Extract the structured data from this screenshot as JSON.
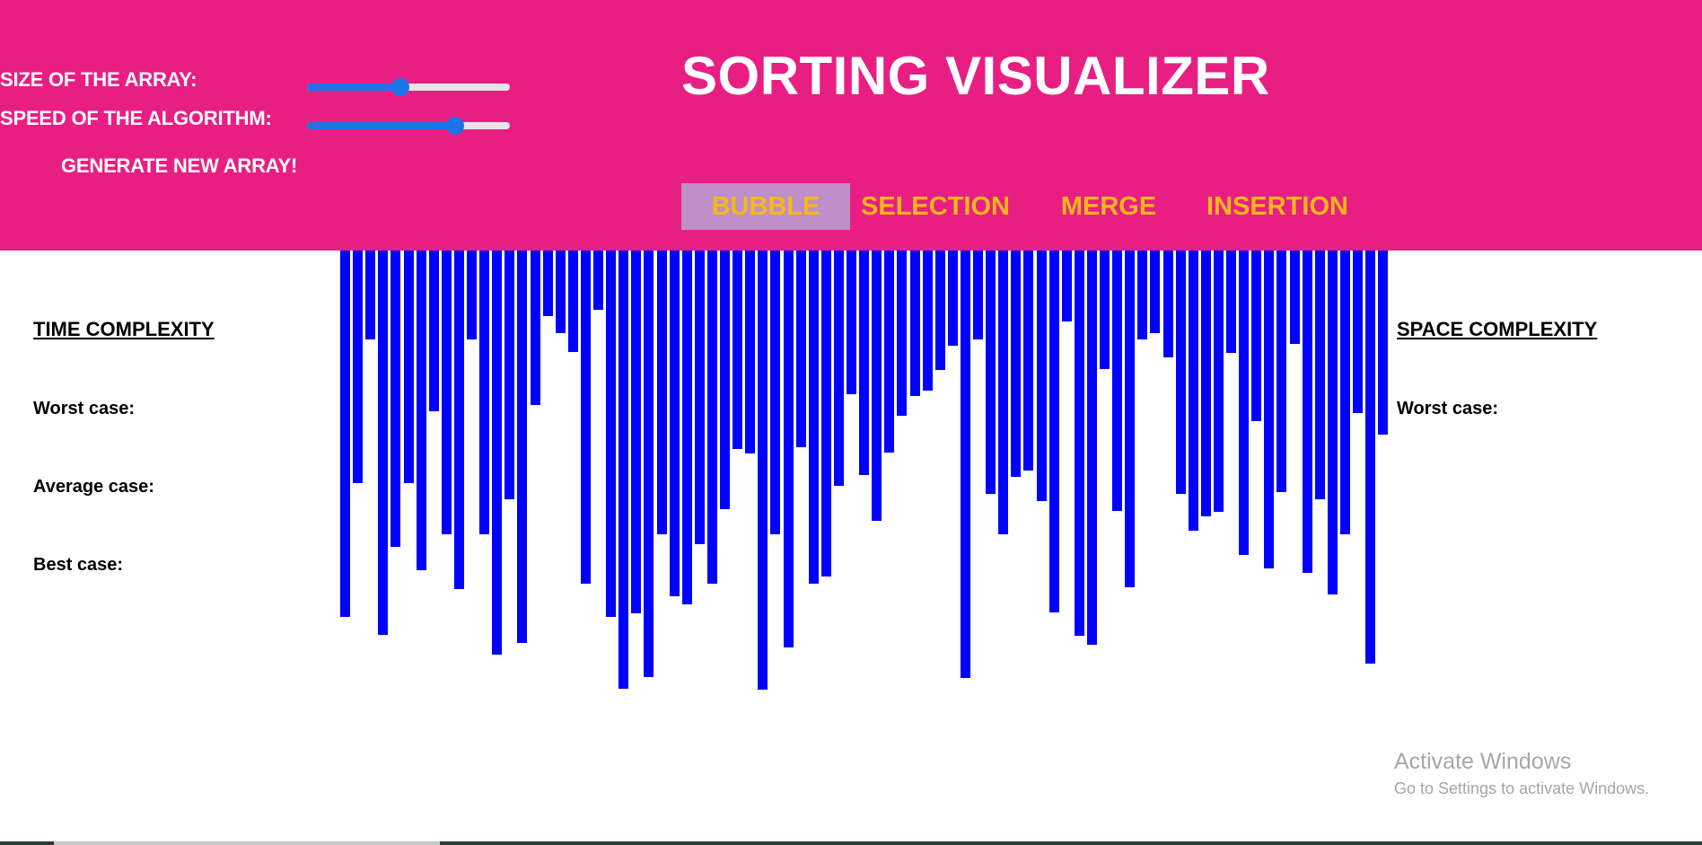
{
  "controls": {
    "size_label": "SIZE OF THE ARRAY:",
    "speed_label": "SPEED OF THE ALGORITHM:",
    "size_value": 0.46,
    "speed_value": 0.73,
    "generate_label": "GENERATE NEW ARRAY!"
  },
  "title": "SORTING VISUALIZER",
  "algorithms": [
    {
      "label": "BUBBLE",
      "active": true
    },
    {
      "label": "SELECTION",
      "active": false
    },
    {
      "label": "MERGE",
      "active": false
    },
    {
      "label": "INSERTION",
      "active": false
    }
  ],
  "time_complexity": {
    "heading": "TIME COMPLEXITY",
    "worst": "Worst case:",
    "average": "Average case:",
    "best": "Best case:"
  },
  "space_complexity": {
    "heading": "SPACE COMPLEXITY",
    "worst": "Worst case:"
  },
  "array_values": [
    408,
    259,
    99,
    428,
    330,
    259,
    356,
    179,
    316,
    377,
    99,
    316,
    450,
    277,
    437,
    172,
    73,
    92,
    113,
    371,
    66,
    408,
    488,
    404,
    475,
    316,
    385,
    394,
    327,
    371,
    288,
    221,
    226,
    489,
    316,
    442,
    219,
    371,
    363,
    262,
    160,
    250,
    301,
    225,
    184,
    162,
    156,
    133,
    106,
    476,
    99,
    271,
    316,
    252,
    245,
    279,
    403,
    79,
    429,
    439,
    132,
    290,
    375,
    99,
    92,
    119,
    271,
    312,
    296,
    291,
    114,
    339,
    190,
    354,
    269,
    104,
    359,
    277,
    383,
    316,
    181,
    460,
    205
  ],
  "colors": {
    "header_bg": "#e91e83",
    "bar": "#0000ff",
    "algo_text": "#f5b81c",
    "active_algo_bg": "#bf8fc9",
    "slider": "#1a73e8"
  },
  "watermark": {
    "line1": "Activate Windows",
    "line2": "Go to Settings to activate Windows."
  }
}
